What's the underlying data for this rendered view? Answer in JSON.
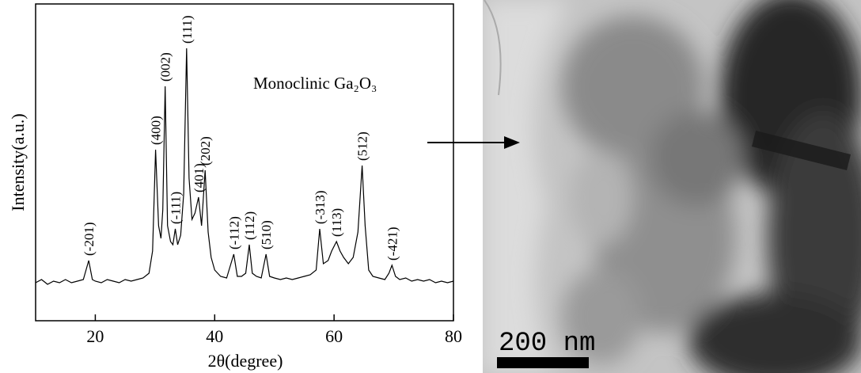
{
  "chart_data": {
    "type": "line",
    "title": "Monoclinic Ga₂O₃",
    "x_label": "2θ(degree)",
    "y_label": "Intensity(a.u.)",
    "xlim": [
      10,
      80
    ],
    "xticks": [
      20,
      40,
      60,
      80
    ],
    "ylim": [
      0,
      100
    ],
    "color": "#000000",
    "x": [
      10,
      11,
      12,
      13,
      14,
      15,
      16,
      17,
      18,
      18.9,
      19.5,
      20,
      21,
      22,
      23,
      24,
      25,
      26,
      27,
      28,
      29,
      29.6,
      30.1,
      30.6,
      31,
      31.3,
      31.7,
      32.1,
      32.6,
      33,
      33.4,
      33.8,
      34.3,
      34.8,
      35.3,
      35.7,
      36.2,
      36.7,
      37.3,
      37.8,
      38.4,
      38.9,
      39.4,
      40,
      41,
      42,
      43.2,
      43.8,
      44.5,
      45.2,
      45.8,
      46.3,
      47,
      47.8,
      48.6,
      49.2,
      50,
      51,
      52,
      53,
      54,
      55,
      56,
      57,
      57.6,
      58.2,
      59,
      59.6,
      60.4,
      61,
      61.6,
      62.4,
      63.2,
      64,
      64.7,
      65.2,
      65.8,
      66.5,
      67.5,
      68.5,
      69.2,
      69.7,
      70.3,
      71,
      72,
      73,
      74,
      75,
      76,
      77,
      78,
      79,
      80
    ],
    "values": [
      12,
      13,
      11.5,
      12.5,
      12,
      13,
      12,
      12.5,
      13,
      19,
      13,
      12.5,
      12,
      13,
      12.5,
      12,
      13,
      12.5,
      13,
      13.5,
      15,
      22,
      54,
      30,
      26,
      35,
      74,
      30,
      25,
      24,
      29,
      24,
      27,
      40,
      86,
      45,
      32,
      34,
      39,
      30,
      47.5,
      28,
      20,
      16,
      14,
      13.5,
      21,
      14,
      14,
      15,
      24,
      15,
      14,
      13.5,
      21,
      14,
      13.5,
      13,
      13.5,
      13,
      13.5,
      14,
      14.5,
      16,
      29,
      18,
      19,
      22,
      25,
      22,
      20,
      18,
      20,
      28,
      49,
      30,
      16,
      14,
      13.5,
      13,
      15,
      17.5,
      14,
      13,
      13.5,
      12.5,
      13,
      12.5,
      13,
      12,
      12.5,
      12,
      12.5
    ],
    "annotations": [
      {
        "text": "(-201)",
        "x": 18.9
      },
      {
        "text": "(400)",
        "x": 30.1
      },
      {
        "text": "(002)",
        "x": 31.7
      },
      {
        "text": "(-111)",
        "x": 33.4
      },
      {
        "text": "(111)",
        "x": 35.3
      },
      {
        "text": "(401)",
        "x": 37.3
      },
      {
        "text": "(202)",
        "x": 38.4
      },
      {
        "text": "(-112)",
        "x": 43.2
      },
      {
        "text": "(112)",
        "x": 45.8
      },
      {
        "text": "(510)",
        "x": 48.6
      },
      {
        "text": "(-313)",
        "x": 57.6
      },
      {
        "text": "(113)",
        "x": 60.4
      },
      {
        "text": "(512)",
        "x": 64.7
      },
      {
        "text": "(-421)",
        "x": 69.7
      }
    ]
  },
  "image": {
    "scale_bar": "200 nm"
  }
}
